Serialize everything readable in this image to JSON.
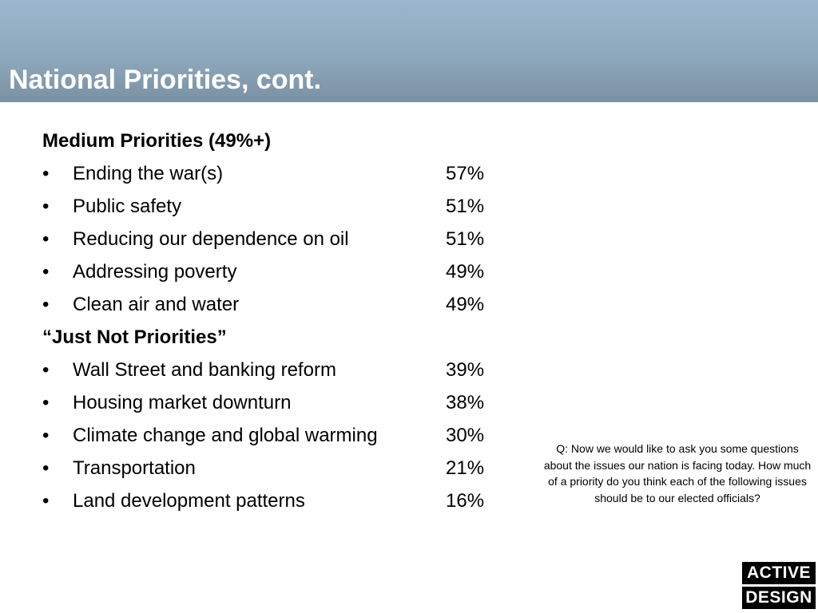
{
  "slide": {
    "title": "National Priorities, cont."
  },
  "sections": [
    {
      "heading": "Medium Priorities (49%+)",
      "items": [
        {
          "label": "Ending the war(s)",
          "value": "57%"
        },
        {
          "label": "Public safety",
          "value": "51%"
        },
        {
          "label": "Reducing our dependence on oil",
          "value": "51%"
        },
        {
          "label": "Addressing poverty",
          "value": "49%"
        },
        {
          "label": "Clean air and water",
          "value": "49%"
        }
      ]
    },
    {
      "heading": "“Just Not Priorities”",
      "items": [
        {
          "label": "Wall Street and banking reform",
          "value": "39%"
        },
        {
          "label": "Housing market downturn",
          "value": "38%"
        },
        {
          "label": "Climate change and global warming",
          "value": "30%"
        },
        {
          "label": "Transportation",
          "value": "21%"
        },
        {
          "label": "Land development patterns",
          "value": "16%"
        }
      ]
    }
  ],
  "bullet": "•",
  "question": "Q: Now we would like to ask you some questions about the issues our nation is facing today. How much of a priority do you think each of the following issues should be to our elected officials?",
  "logo": {
    "line1": "ACTIVE",
    "line2": "DESIGN"
  },
  "colors": {
    "header_top": "#9cb7cd",
    "header_bottom": "#7b91a3",
    "title_text": "#ffffff",
    "body_text": "#000000"
  }
}
